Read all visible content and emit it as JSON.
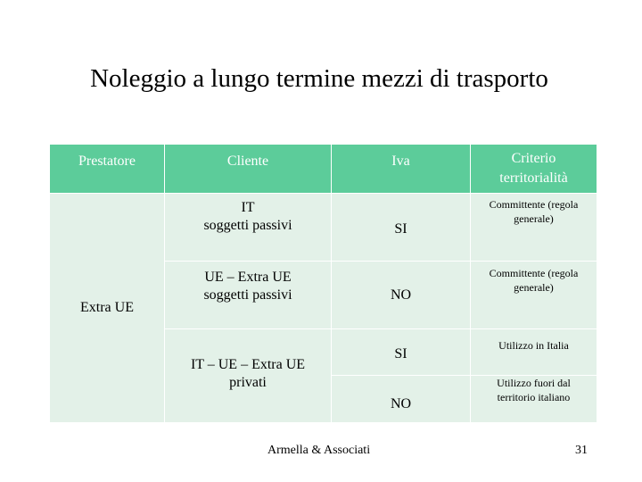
{
  "title": "Noleggio a lungo termine mezzi di trasporto",
  "table": {
    "headers": [
      "Prestatore",
      "Cliente",
      "Iva",
      "Criterio territorialità"
    ],
    "prestatore": "Extra UE",
    "rows": [
      {
        "cliente": [
          "IT",
          "soggetti passivi"
        ],
        "iva": "SI",
        "criterio": "Committente (regola generale)"
      },
      {
        "cliente": [
          "UE – Extra UE",
          "soggetti passivi"
        ],
        "iva": "NO",
        "criterio": "Committente (regola generale)"
      },
      {
        "cliente": [
          "IT – UE – Extra UE",
          "privati"
        ],
        "iva": "SI",
        "criterio": "Utilizzo in Italia"
      },
      {
        "iva": "NO",
        "criterio": "Utilizzo fuori dal territorio italiano"
      }
    ]
  },
  "footer": {
    "author": "Armella & Associati",
    "page": "31"
  }
}
